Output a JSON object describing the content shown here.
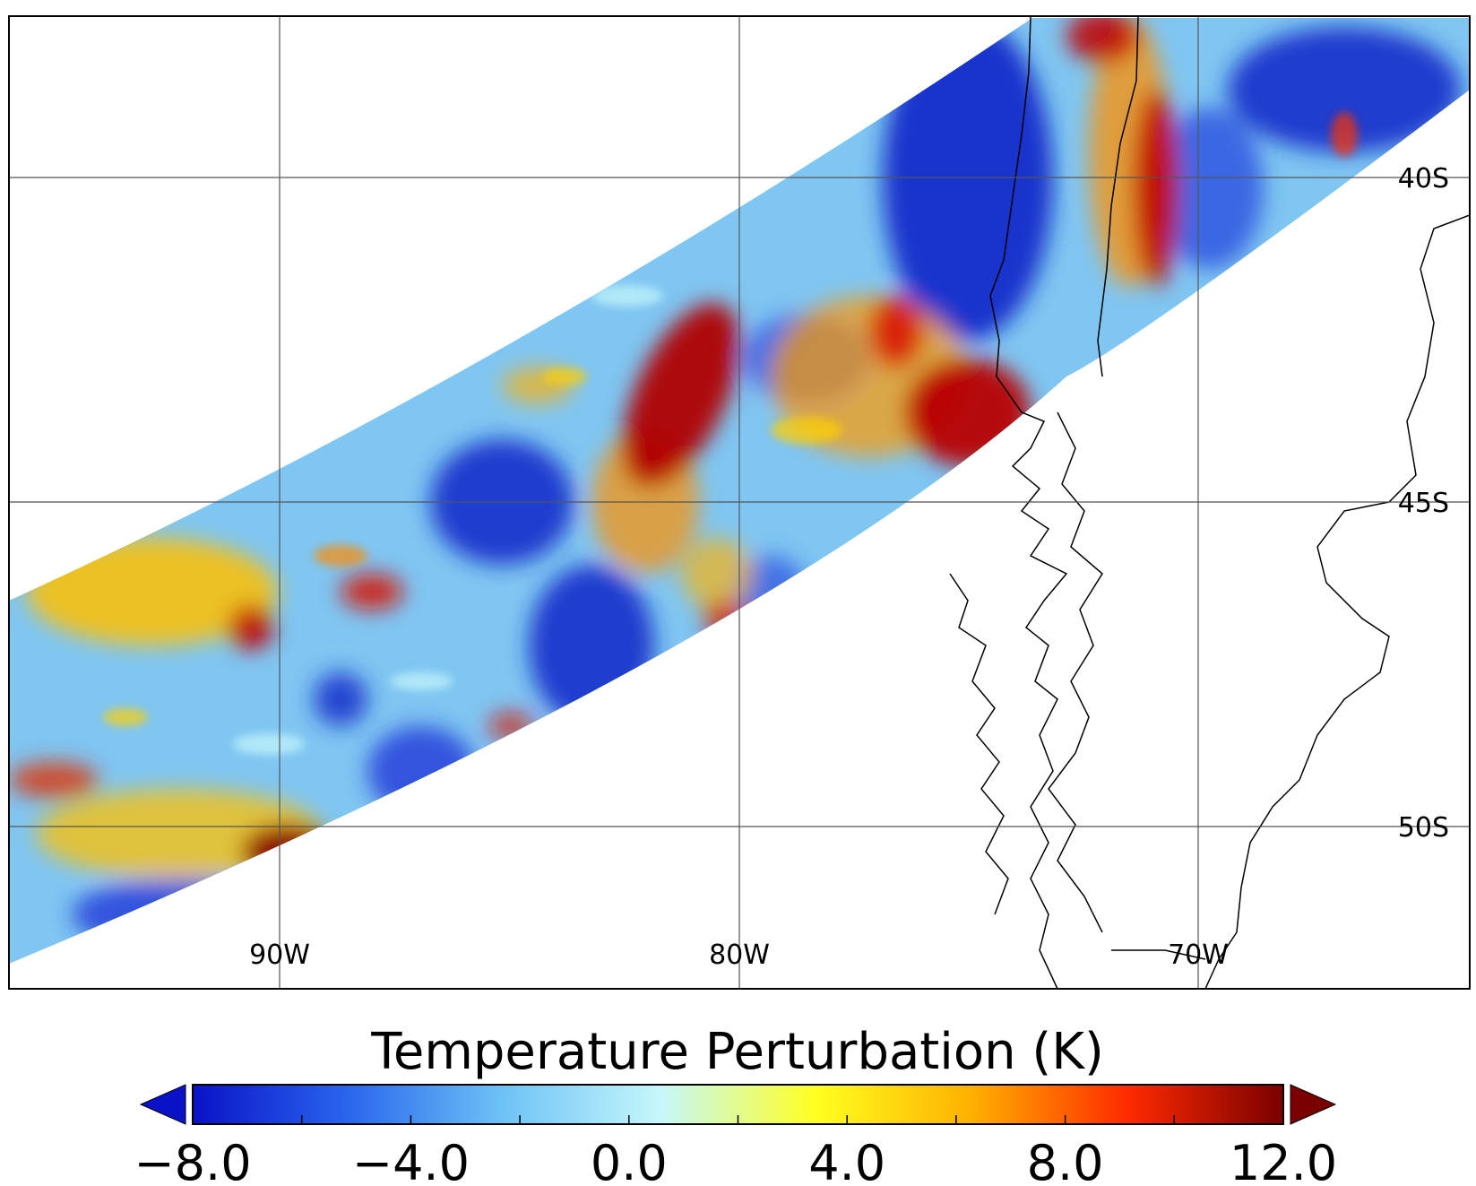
{
  "map": {
    "longitude_labels": [
      "90W",
      "80W",
      "70W"
    ],
    "latitude_labels": [
      "40S",
      "45S",
      "50S"
    ]
  },
  "colorbar": {
    "title": "Temperature Perturbation (K)",
    "min": -8.0,
    "max": 12.0,
    "tick_labels": [
      "−8.0",
      "−4.0",
      "0.0",
      "4.0",
      "8.0",
      "12.0"
    ],
    "color_stops": [
      "#0a12c8",
      "#2a66ee",
      "#6ec3f6",
      "#c6f7fb",
      "#ffff20",
      "#ffb000",
      "#ff2a00",
      "#7a0000"
    ],
    "extend": "both"
  },
  "colors": {
    "swath_background": "#7fc6f2",
    "strong_negative": "#1224c8",
    "strong_positive": "#b00000",
    "coastline": "#000000",
    "grid": "#555555"
  }
}
